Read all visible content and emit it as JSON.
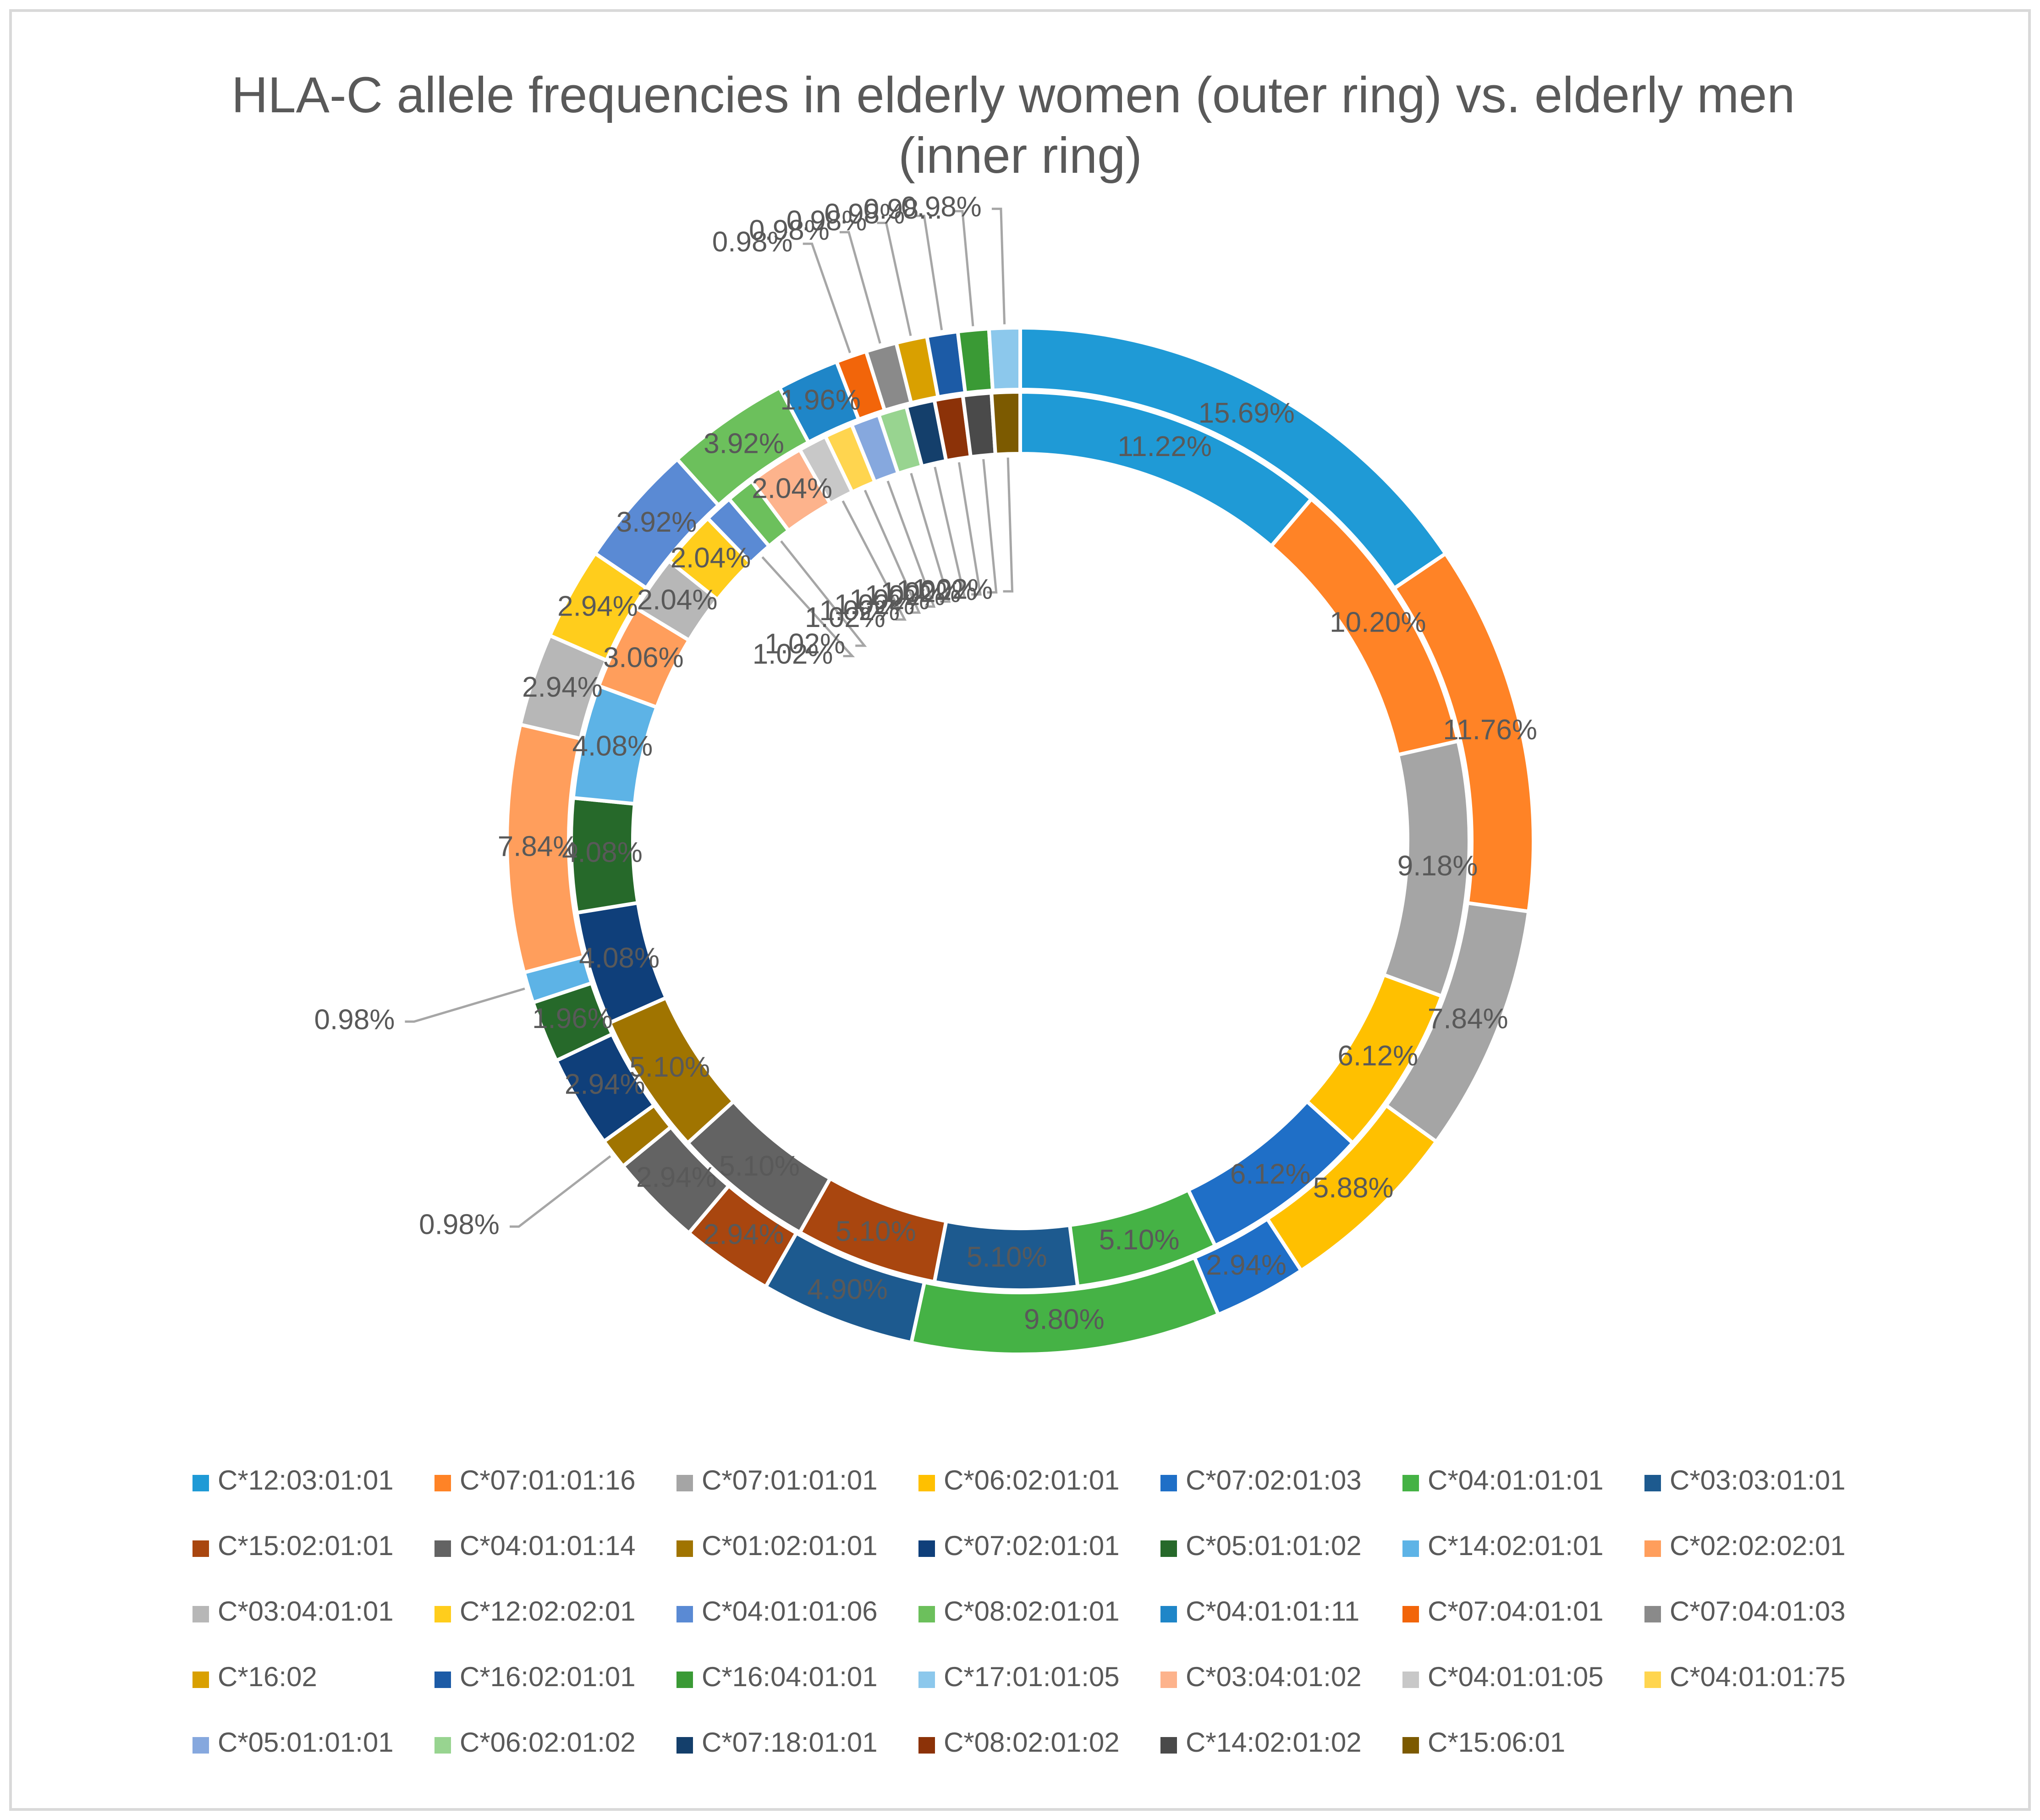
{
  "chart_data": {
    "type": "doughnut",
    "title": "HLA-C allele frequencies in elderly women (outer ring) vs. elderly men (inner ring)",
    "legend_position": "bottom",
    "alleles": [
      {
        "name": "C*12:03:01:01",
        "color": "#1F9AD6"
      },
      {
        "name": "C*07:01:01:16",
        "color": "#FF8326"
      },
      {
        "name": "C*07:01:01:01",
        "color": "#A5A5A5"
      },
      {
        "name": "C*06:02:01:01",
        "color": "#FFC000"
      },
      {
        "name": "C*07:02:01:03",
        "color": "#1F6FC7"
      },
      {
        "name": "C*04:01:01:01",
        "color": "#45B245"
      },
      {
        "name": "C*03:03:01:01",
        "color": "#1D5A8F"
      },
      {
        "name": "C*15:02:01:01",
        "color": "#A9460F"
      },
      {
        "name": "C*04:01:01:14",
        "color": "#636363"
      },
      {
        "name": "C*01:02:01:01",
        "color": "#A07400"
      },
      {
        "name": "C*07:02:01:01",
        "color": "#0F3F7A"
      },
      {
        "name": "C*05:01:01:02",
        "color": "#26692A"
      },
      {
        "name": "C*14:02:01:01",
        "color": "#5DB3E6"
      },
      {
        "name": "C*02:02:02:01",
        "color": "#FF9E5C"
      },
      {
        "name": "C*03:04:01:01",
        "color": "#B7B7B7"
      },
      {
        "name": "C*12:02:02:01",
        "color": "#FFCD1C"
      },
      {
        "name": "C*04:01:01:06",
        "color": "#5A8AD4"
      },
      {
        "name": "C*08:02:01:01",
        "color": "#6CC05C"
      },
      {
        "name": "C*04:01:01:11",
        "color": "#1F86C8"
      },
      {
        "name": "C*07:04:01:01",
        "color": "#F2650A"
      },
      {
        "name": "C*07:04:01:03",
        "color": "#8A8A8A"
      },
      {
        "name": "C*16:02",
        "color": "#D9A000"
      },
      {
        "name": "C*16:02:01:01",
        "color": "#1C5BA6"
      },
      {
        "name": "C*16:04:01:01",
        "color": "#3A9A35"
      },
      {
        "name": "C*17:01:01:05",
        "color": "#8CC8EC"
      },
      {
        "name": "C*03:04:01:02",
        "color": "#FDB38C"
      },
      {
        "name": "C*04:01:01:05",
        "color": "#C8C8C8"
      },
      {
        "name": "C*04:01:01:75",
        "color": "#FFD54F"
      },
      {
        "name": "C*05:01:01:01",
        "color": "#86A8DE"
      },
      {
        "name": "C*06:02:01:02",
        "color": "#98D490"
      },
      {
        "name": "C*07:18:01:01",
        "color": "#143F6B"
      },
      {
        "name": "C*08:02:01:02",
        "color": "#8C3208"
      },
      {
        "name": "C*14:02:01:02",
        "color": "#4A4A4A"
      },
      {
        "name": "C*15:06:01",
        "color": "#7C5A00"
      }
    ],
    "series": [
      {
        "name": "elderly women (outer ring)",
        "values": [
          15.69,
          11.76,
          7.84,
          5.88,
          2.94,
          9.8,
          4.9,
          2.94,
          2.94,
          0.98,
          2.94,
          1.96,
          0.98,
          7.84,
          2.94,
          2.94,
          3.92,
          3.92,
          1.96,
          0.98,
          0.98,
          0.98,
          0.98,
          0.98,
          0.98,
          0,
          0,
          0,
          0,
          0,
          0,
          0,
          0,
          0
        ],
        "labels": [
          "15.69%",
          "11.76%",
          "7.84%",
          "5.88%",
          "2.94%",
          "9.80%",
          "4.90%",
          "2.94%",
          "2.94%",
          "0.98%",
          "2.94%",
          "1.96%",
          "0.98%",
          "7.84%",
          "2.94%",
          "2.94%",
          "3.92%",
          "3.92%",
          "1.96%",
          "0.98%",
          "0.98%",
          "0.98%",
          "0.98%",
          "0.98...",
          "0.98%",
          "",
          "",
          "",
          "",
          "",
          "",
          "",
          "",
          ""
        ]
      },
      {
        "name": "elderly men (inner ring)",
        "values": [
          11.22,
          10.2,
          9.18,
          6.12,
          6.12,
          5.1,
          5.1,
          5.1,
          5.1,
          5.1,
          4.08,
          4.08,
          4.08,
          3.06,
          2.04,
          2.04,
          1.02,
          1.02,
          0,
          0,
          0,
          0,
          0,
          0,
          0,
          2.04,
          1.02,
          1.02,
          1.02,
          1.02,
          1.02,
          1.02,
          1.02,
          1.02
        ],
        "labels": [
          "11.22%",
          "10.20%",
          "9.18%",
          "6.12%",
          "6.12%",
          "5.10%",
          "5.10%",
          "5.10%",
          "5.10%",
          "5.10%",
          "4.08%",
          "4.08%",
          "4.08%",
          "3.06%",
          "2.04%",
          "2.04%",
          "1.02%",
          "1.02%",
          "",
          "",
          "",
          "",
          "",
          "",
          "",
          "2.04%",
          "1.02%",
          "1.02%",
          "1.02%",
          "1.02%",
          "1.02%",
          "1.02%",
          "1.02%",
          "1.02%"
        ]
      }
    ]
  }
}
